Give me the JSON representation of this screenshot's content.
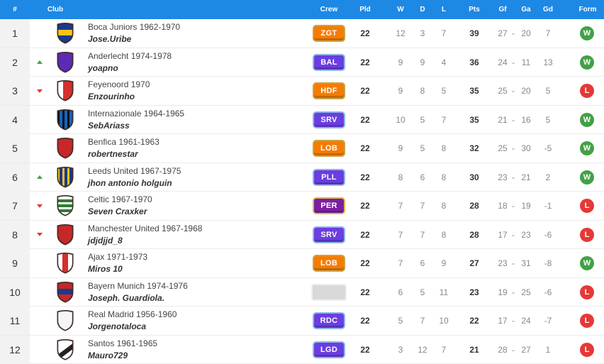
{
  "header": {
    "pos": "#",
    "club": "Club",
    "crew": "Crew",
    "pld": "Pld",
    "w": "W",
    "d": "D",
    "l": "L",
    "pts": "Pts",
    "gf": "Gf",
    "ga": "Ga",
    "gd": "Gd",
    "form": "Form"
  },
  "rows": [
    {
      "pos": "1",
      "trend": "none",
      "club": "Boca Juniors 1962-1970",
      "manager": "Jose.Uribe",
      "crew": "ZGT",
      "crew_color": "#f57c00",
      "crew_border": "#c8a44a",
      "pld": "22",
      "w": "12",
      "d": "3",
      "l": "7",
      "pts": "39",
      "gf": "27",
      "ga": "20",
      "gd": "7",
      "form": "W",
      "shield_primary": "#1b3a8c",
      "shield_secondary": "#f5c518",
      "shield_style": "band"
    },
    {
      "pos": "2",
      "trend": "up",
      "club": "Anderlecht 1974-1978",
      "manager": "yoapno",
      "crew": "BAL",
      "crew_color": "#6a3ee0",
      "crew_border": "#8fb5e8",
      "pld": "22",
      "w": "9",
      "d": "9",
      "l": "4",
      "pts": "36",
      "gf": "24",
      "ga": "11",
      "gd": "13",
      "form": "W",
      "shield_primary": "#5b2bb5",
      "shield_secondary": "#5b2bb5",
      "shield_style": "solid"
    },
    {
      "pos": "3",
      "trend": "down",
      "club": "Feyenoord 1970",
      "manager": "Enzourinho",
      "crew": "HDF",
      "crew_color": "#f57c00",
      "crew_border": "#c8a44a",
      "pld": "22",
      "w": "9",
      "d": "8",
      "l": "5",
      "pts": "35",
      "gf": "25",
      "ga": "20",
      "gd": "5",
      "form": "L",
      "shield_primary": "#d32f2f",
      "shield_secondary": "#ffffff",
      "shield_style": "half"
    },
    {
      "pos": "4",
      "trend": "none",
      "club": "Internazionale 1964-1965",
      "manager": "SebAriass",
      "crew": "SRV",
      "crew_color": "#6a3ee0",
      "crew_border": "#8fb5e8",
      "pld": "22",
      "w": "10",
      "d": "5",
      "l": "7",
      "pts": "35",
      "gf": "21",
      "ga": "16",
      "gd": "5",
      "form": "W",
      "shield_primary": "#1565c0",
      "shield_secondary": "#111111",
      "shield_style": "stripes"
    },
    {
      "pos": "5",
      "trend": "none",
      "club": "Benfica 1961-1963",
      "manager": "robertnestar",
      "crew": "LOB",
      "crew_color": "#f57c00",
      "crew_border": "#c8a44a",
      "pld": "22",
      "w": "9",
      "d": "5",
      "l": "8",
      "pts": "32",
      "gf": "25",
      "ga": "30",
      "gd": "-5",
      "form": "W",
      "shield_primary": "#c62828",
      "shield_secondary": "#c62828",
      "shield_style": "solid"
    },
    {
      "pos": "6",
      "trend": "up",
      "club": "Leeds United 1967-1975",
      "manager": "jhon antonio holguin",
      "crew": "PLL",
      "crew_color": "#6a3ee0",
      "crew_border": "#8fb5e8",
      "pld": "22",
      "w": "8",
      "d": "6",
      "l": "8",
      "pts": "30",
      "gf": "23",
      "ga": "21",
      "gd": "2",
      "form": "W",
      "shield_primary": "#1b3a8c",
      "shield_secondary": "#f5c518",
      "shield_style": "stripes"
    },
    {
      "pos": "7",
      "trend": "down",
      "club": "Celtic 1967-1970",
      "manager": "Seven Craxker",
      "crew": "PER",
      "crew_color": "#7b1fa2",
      "crew_border": "#e0b84a",
      "pld": "22",
      "w": "7",
      "d": "7",
      "l": "8",
      "pts": "28",
      "gf": "18",
      "ga": "19",
      "gd": "-1",
      "form": "L",
      "shield_primary": "#2e7d32",
      "shield_secondary": "#ffffff",
      "shield_style": "hoops"
    },
    {
      "pos": "8",
      "trend": "down",
      "club": "Manchester United 1967-1968",
      "manager": "jdjdjjd_8",
      "crew": "SRV",
      "crew_color": "#6a3ee0",
      "crew_border": "#8fb5e8",
      "pld": "22",
      "w": "7",
      "d": "7",
      "l": "8",
      "pts": "28",
      "gf": "17",
      "ga": "23",
      "gd": "-6",
      "form": "L",
      "shield_primary": "#c62828",
      "shield_secondary": "#c62828",
      "shield_style": "solid"
    },
    {
      "pos": "9",
      "trend": "none",
      "club": "Ajax 1971-1973",
      "manager": "Miros 10",
      "crew": "LOB",
      "crew_color": "#f57c00",
      "crew_border": "#c8a44a",
      "pld": "22",
      "w": "7",
      "d": "6",
      "l": "9",
      "pts": "27",
      "gf": "23",
      "ga": "31",
      "gd": "-8",
      "form": "W",
      "shield_primary": "#d32f2f",
      "shield_secondary": "#ffffff",
      "shield_style": "center"
    },
    {
      "pos": "10",
      "trend": "none",
      "club": "Bayern Munich 1974-1976",
      "manager": "Joseph. Guardiola.",
      "crew": "",
      "crew_color": "#d9d9d9",
      "crew_border": "#eeeeee",
      "pld": "22",
      "w": "6",
      "d": "5",
      "l": "11",
      "pts": "23",
      "gf": "19",
      "ga": "25",
      "gd": "-6",
      "form": "L",
      "shield_primary": "#c62828",
      "shield_secondary": "#1b3a8c",
      "shield_style": "band"
    },
    {
      "pos": "11",
      "trend": "none",
      "club": "Real Madrid 1956-1960",
      "manager": "Jorgenotaloca",
      "crew": "RDC",
      "crew_color": "#6a3ee0",
      "crew_border": "#8fb5e8",
      "pld": "22",
      "w": "5",
      "d": "7",
      "l": "10",
      "pts": "22",
      "gf": "17",
      "ga": "24",
      "gd": "-7",
      "form": "L",
      "shield_primary": "#f5f5f5",
      "shield_secondary": "#f5f5f5",
      "shield_style": "solid"
    },
    {
      "pos": "12",
      "trend": "none",
      "club": "Santos 1961-1965",
      "manager": "Mauro729",
      "crew": "LGD",
      "crew_color": "#6a3ee0",
      "crew_border": "#8fb5e8",
      "pld": "22",
      "w": "3",
      "d": "12",
      "l": "7",
      "pts": "21",
      "gf": "28",
      "ga": "27",
      "gd": "1",
      "form": "L",
      "shield_primary": "#ffffff",
      "shield_secondary": "#222222",
      "shield_style": "diagonal"
    }
  ],
  "colors": {
    "header_bg": "#1e88e5",
    "win": "#43a047",
    "loss": "#e53935",
    "trend_up": "#43a047",
    "trend_down": "#e53935"
  }
}
